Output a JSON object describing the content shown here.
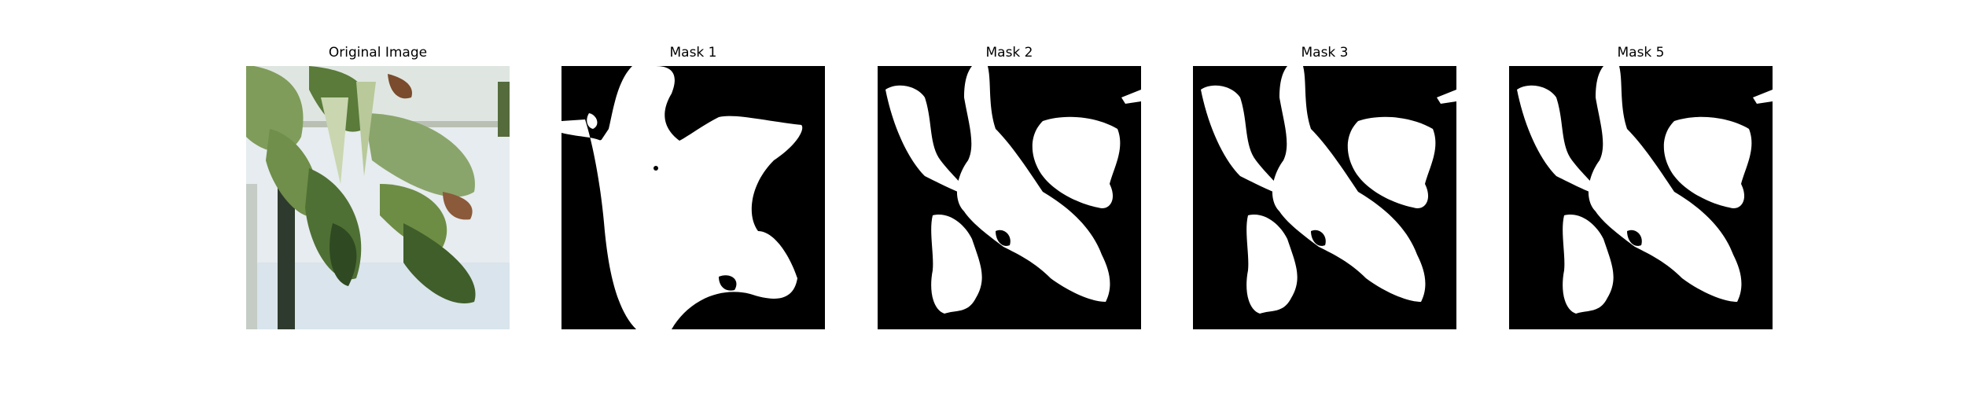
{
  "figure": {
    "panels": [
      {
        "title": "Original Image",
        "kind": "photo",
        "icon": "plant-photo"
      },
      {
        "title": "Mask 1",
        "kind": "mask",
        "icon": "segmentation-mask"
      },
      {
        "title": "Mask 2",
        "kind": "mask",
        "icon": "segmentation-mask"
      },
      {
        "title": "Mask 3",
        "kind": "mask",
        "icon": "segmentation-mask"
      },
      {
        "title": "Mask 5",
        "kind": "mask",
        "icon": "segmentation-mask"
      }
    ],
    "colors": {
      "mask_background": "#000000",
      "mask_foreground": "#ffffff",
      "leaf_dark": "#3f5e2a",
      "leaf_mid": "#6f8f4a",
      "leaf_light": "#c9d6b0",
      "sky": "#e6ecef",
      "pole": "#2f3a2e"
    }
  }
}
